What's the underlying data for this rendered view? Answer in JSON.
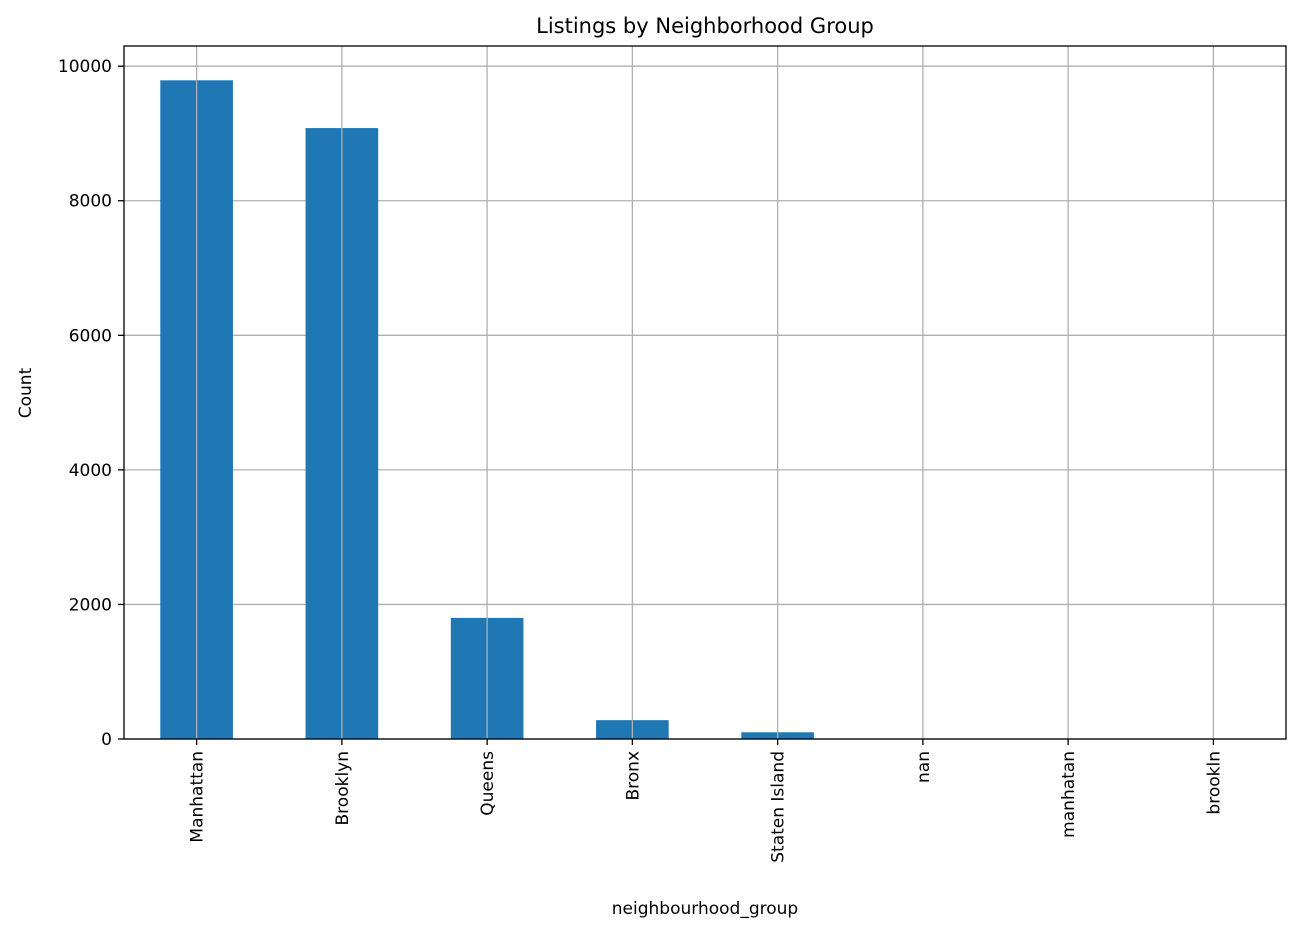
{
  "chart_data": {
    "type": "bar",
    "title": "Listings by Neighborhood Group",
    "xlabel": "neighbourhood_group",
    "ylabel": "Count",
    "categories": [
      "Manhattan",
      "Brooklyn",
      "Queens",
      "Bronx",
      "Staten Island",
      "nan",
      "manhatan",
      "brookln"
    ],
    "values": [
      9790,
      9080,
      1800,
      280,
      100,
      0,
      0,
      0
    ],
    "ylim": [
      0,
      10300
    ],
    "yticks": [
      0,
      2000,
      4000,
      6000,
      8000,
      10000
    ],
    "grid": true,
    "legend": "none",
    "bar_color": "#1f77b4",
    "grid_color": "#b0b0b0"
  }
}
